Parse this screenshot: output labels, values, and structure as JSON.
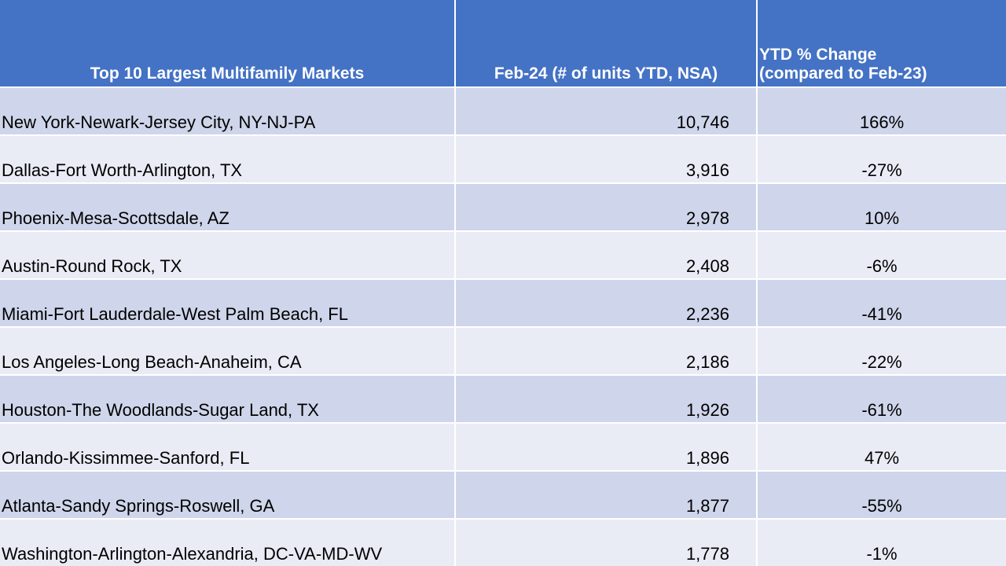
{
  "chart_data": {
    "type": "table",
    "columns": [
      "Top 10 Largest Multifamily Markets",
      "Feb-24 (# of units YTD, NSA)",
      "YTD % Change\n(compared to Feb-23)"
    ],
    "rows": [
      {
        "market": "New York-Newark-Jersey City, NY-NJ-PA",
        "units": "10,746",
        "change": "166%"
      },
      {
        "market": "Dallas-Fort Worth-Arlington, TX",
        "units": "3,916",
        "change": "-27%"
      },
      {
        "market": "Phoenix-Mesa-Scottsdale, AZ",
        "units": "2,978",
        "change": "10%"
      },
      {
        "market": "Austin-Round Rock, TX",
        "units": "2,408",
        "change": "-6%"
      },
      {
        "market": "Miami-Fort Lauderdale-West Palm Beach, FL",
        "units": "2,236",
        "change": "-41%"
      },
      {
        "market": "Los Angeles-Long Beach-Anaheim, CA",
        "units": "2,186",
        "change": "-22%"
      },
      {
        "market": "Houston-The Woodlands-Sugar Land, TX",
        "units": "1,926",
        "change": "-61%"
      },
      {
        "market": "Orlando-Kissimmee-Sanford, FL",
        "units": "1,896",
        "change": "47%"
      },
      {
        "market": "Atlanta-Sandy Springs-Roswell, GA",
        "units": "1,877",
        "change": "-55%"
      },
      {
        "market": "Washington-Arlington-Alexandria, DC-VA-MD-WV",
        "units": "1,778",
        "change": "-1%"
      }
    ]
  },
  "colors": {
    "header_bg": "#4472c4",
    "row_dark": "#cfd5ea",
    "row_light": "#e9ebf5"
  }
}
